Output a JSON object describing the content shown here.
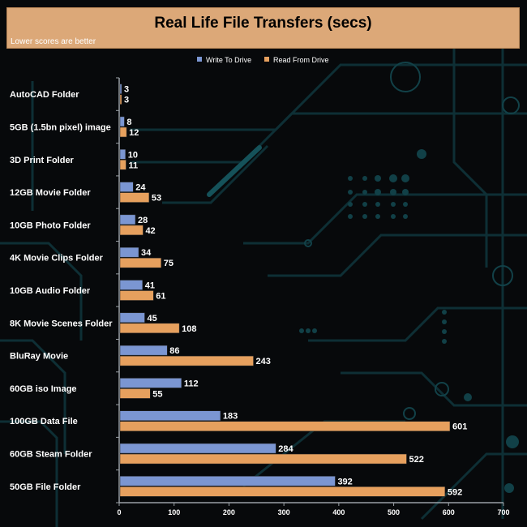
{
  "chart_data": {
    "type": "bar",
    "orientation": "horizontal",
    "title": "Real Life File Transfers (secs)",
    "subtitle": "Lower scores are better",
    "categories": [
      "AutoCAD Folder",
      "5GB (1.5bn pixel) image",
      "3D Print Folder",
      "12GB Movie Folder",
      "10GB Photo Folder",
      "4K Movie Clips Folder",
      "10GB Audio Folder",
      "8K Movie Scenes Folder",
      "BluRay Movie",
      "60GB iso Image",
      "100GB Data File",
      "60GB Steam Folder",
      "50GB File Folder"
    ],
    "series": [
      {
        "name": "Write To  Drive",
        "color": "#7b96d2",
        "values": [
          3,
          8,
          10,
          24,
          28,
          34,
          41,
          45,
          86,
          112,
          183,
          284,
          392
        ]
      },
      {
        "name": "Read From  Drive",
        "color": "#e6a05e",
        "values": [
          3,
          12,
          11,
          53,
          42,
          75,
          61,
          108,
          243,
          55,
          601,
          522,
          592
        ]
      }
    ],
    "xlim": [
      0,
      700
    ],
    "xticks": [
      0,
      100,
      200,
      300,
      400,
      500,
      600,
      700
    ],
    "legend": "top-center",
    "grid": false
  }
}
